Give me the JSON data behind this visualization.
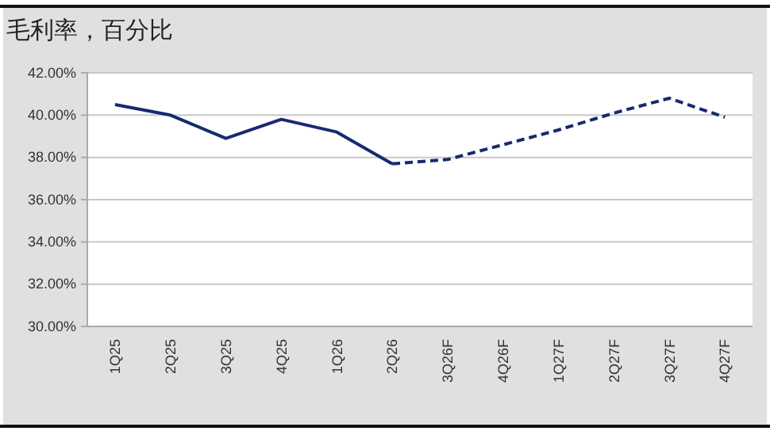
{
  "chart_data": {
    "type": "line",
    "title": "毛利率，百分比",
    "categories": [
      "1Q25",
      "2Q25",
      "3Q25",
      "4Q25",
      "1Q26",
      "2Q26",
      "3Q26F",
      "4Q26F",
      "1Q27F",
      "2Q27F",
      "3Q27F",
      "4Q27F"
    ],
    "series": [
      {
        "color": "#172a6e",
        "line_style": "solid",
        "values": [
          40.5,
          40.0,
          38.9,
          39.8,
          39.2,
          37.7,
          null,
          null,
          null,
          null,
          null,
          null
        ]
      },
      {
        "color": "#172a6e",
        "line_style": "dashed",
        "values": [
          null,
          null,
          null,
          null,
          null,
          37.7,
          37.9,
          38.6,
          39.3,
          40.1,
          40.8,
          39.9
        ]
      }
    ],
    "ylim": [
      30,
      42
    ],
    "yticks": [
      {
        "value": 30,
        "label": "30.00%"
      },
      {
        "value": 32,
        "label": "32.00%"
      },
      {
        "value": 34,
        "label": "34.00%"
      },
      {
        "value": 36,
        "label": "36.00%"
      },
      {
        "value": 38,
        "label": "38.00%"
      },
      {
        "value": 40,
        "label": "40.00%"
      },
      {
        "value": 42,
        "label": "42.00%"
      }
    ],
    "grid": "y",
    "marker": "none"
  }
}
